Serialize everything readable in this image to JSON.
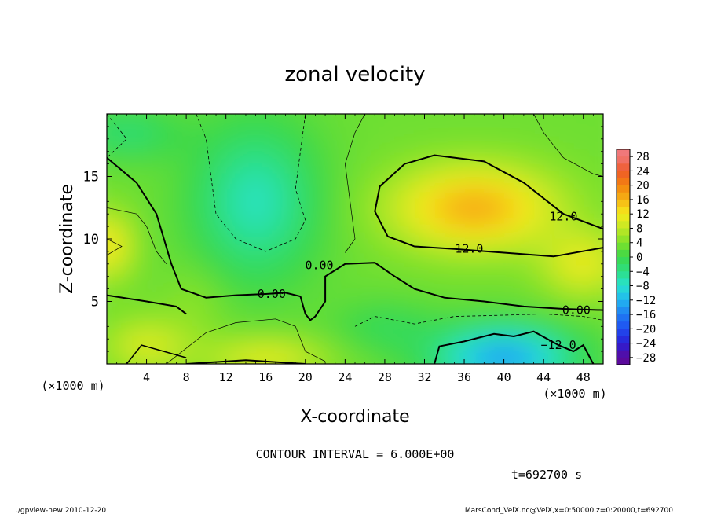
{
  "chart_data": {
    "type": "heatmap",
    "title": "zonal velocity",
    "xlabel": "X-coordinate",
    "ylabel": "Z-coordinate",
    "x_unit_label": "(×1000 m)",
    "z_unit_label": "(×1000 m)",
    "xlim": [
      0,
      50
    ],
    "ylim": [
      0,
      20
    ],
    "x_ticks": [
      "4",
      "8",
      "12",
      "16",
      "20",
      "24",
      "28",
      "32",
      "36",
      "40",
      "44",
      "48"
    ],
    "x_tick_values": [
      4,
      8,
      12,
      16,
      20,
      24,
      28,
      32,
      36,
      40,
      44,
      48
    ],
    "y_ticks": [
      "5",
      "10",
      "15"
    ],
    "y_tick_values": [
      5,
      10,
      15
    ],
    "colorbar_labels": [
      "28",
      "24",
      "20",
      "16",
      "12",
      "8",
      "4",
      "0",
      "−4",
      "−8",
      "−12",
      "−16",
      "−20",
      "−24",
      "−28"
    ],
    "colorbar_values": [
      28,
      24,
      20,
      16,
      12,
      8,
      4,
      0,
      -4,
      -8,
      -12,
      -16,
      -20,
      -24,
      -28
    ],
    "contour_labels": [
      {
        "text": "12.0",
        "x": 46.0,
        "z": 11.8
      },
      {
        "text": "12.0",
        "x": 36.5,
        "z": 9.2
      },
      {
        "text": "0.00",
        "x": 16.6,
        "z": 5.6
      },
      {
        "text": "0.00",
        "x": 21.4,
        "z": 7.9
      },
      {
        "text": "0.00",
        "x": 47.3,
        "z": 4.3
      },
      {
        "text": "−12.0",
        "x": 45.5,
        "z": 1.5
      }
    ],
    "features": [
      {
        "description_value": "jet maximum about 16",
        "x": 36,
        "z": 12
      },
      {
        "description_value": "minimum about −14",
        "x": 40,
        "z": 1
      }
    ]
  },
  "contour_interval_text": "CONTOUR INTERVAL = 6.000E+00",
  "time_text": "t=692700 s",
  "footer_left": "./gpview-new  2010-12-20",
  "footer_right": "MarsCond_VelX.nc@VelX,x=0:50000,z=0:20000,t=692700"
}
